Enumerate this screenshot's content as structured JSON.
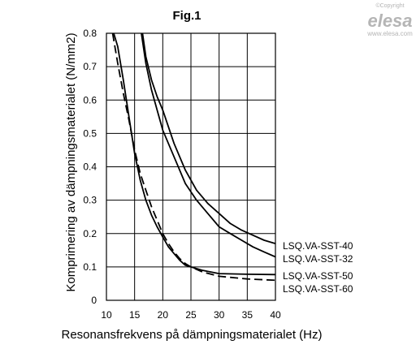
{
  "chart_data": {
    "type": "line",
    "title": "Fig.1",
    "xlabel": "Resonansfrekvens på dämpningsmaterialet (Hz)",
    "ylabel": "Komprimering av dämpningsmaterialet (N/mm2)",
    "xlim": [
      10,
      40
    ],
    "ylim": [
      0,
      0.8
    ],
    "x_ticks": [
      "10",
      "15",
      "20",
      "25",
      "30",
      "35",
      "40"
    ],
    "y_ticks": [
      "0",
      "0.1",
      "0.2",
      "0.3",
      "0.4",
      "0.5",
      "0.6",
      "0.7",
      "0.8"
    ],
    "grid": true,
    "series": [
      {
        "name": "LSQ.VA-SST-40",
        "style": "solid",
        "x": [
          16.4,
          17,
          18,
          19,
          20,
          22,
          24,
          26,
          28,
          30,
          32,
          34,
          36,
          38,
          40
        ],
        "y": [
          0.8,
          0.73,
          0.66,
          0.61,
          0.57,
          0.47,
          0.39,
          0.33,
          0.29,
          0.26,
          0.23,
          0.21,
          0.195,
          0.18,
          0.17
        ]
      },
      {
        "name": "LSQ.VA-SST-32",
        "style": "solid",
        "x": [
          16.2,
          17,
          18,
          19,
          20,
          22,
          24,
          26,
          28,
          30,
          32,
          34,
          36,
          38,
          40
        ],
        "y": [
          0.8,
          0.71,
          0.63,
          0.57,
          0.51,
          0.43,
          0.35,
          0.3,
          0.26,
          0.22,
          0.2,
          0.18,
          0.16,
          0.145,
          0.13
        ]
      },
      {
        "name": "LSQ.VA-SST-50",
        "style": "solid",
        "x": [
          11.3,
          12,
          13,
          14,
          15,
          16,
          17,
          18,
          19,
          20,
          21,
          22,
          23,
          24,
          25,
          27,
          30,
          35,
          40
        ],
        "y": [
          0.8,
          0.76,
          0.66,
          0.55,
          0.44,
          0.36,
          0.3,
          0.255,
          0.22,
          0.19,
          0.16,
          0.14,
          0.12,
          0.105,
          0.1,
          0.09,
          0.08,
          0.078,
          0.077
        ]
      },
      {
        "name": "LSQ.VA-SST-60",
        "style": "dashed",
        "x": [
          11.1,
          11.5,
          12,
          13,
          14,
          15,
          16,
          17,
          18,
          19,
          20,
          21,
          22,
          23,
          24,
          25,
          27,
          30,
          35,
          40
        ],
        "y": [
          0.8,
          0.76,
          0.71,
          0.62,
          0.54,
          0.45,
          0.38,
          0.33,
          0.28,
          0.24,
          0.2,
          0.17,
          0.145,
          0.125,
          0.11,
          0.1,
          0.085,
          0.072,
          0.064,
          0.06
        ]
      }
    ]
  },
  "branding": {
    "copyright": "©Copyright",
    "logo": "elesa",
    "url": "www.elesa.com"
  }
}
